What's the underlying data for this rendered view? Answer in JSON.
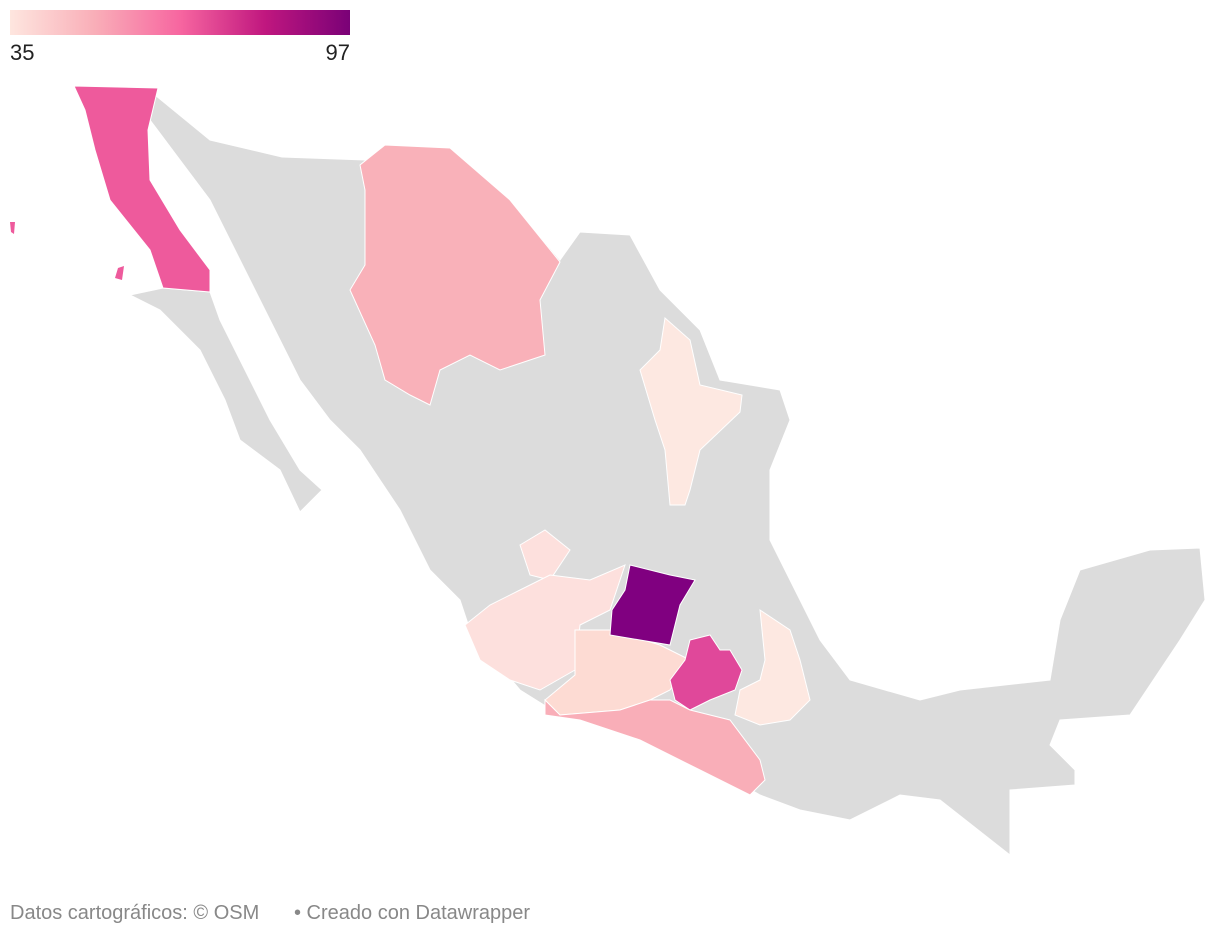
{
  "legend": {
    "min": 35,
    "max": 97,
    "colors": [
      "#fee6df",
      "#f9aeb8",
      "#f766a0",
      "#c0177f",
      "#7a0177"
    ]
  },
  "footer": {
    "source": "Datos cartográficos: © OSM",
    "credit": "• Creado con Datawrapper"
  }
}
